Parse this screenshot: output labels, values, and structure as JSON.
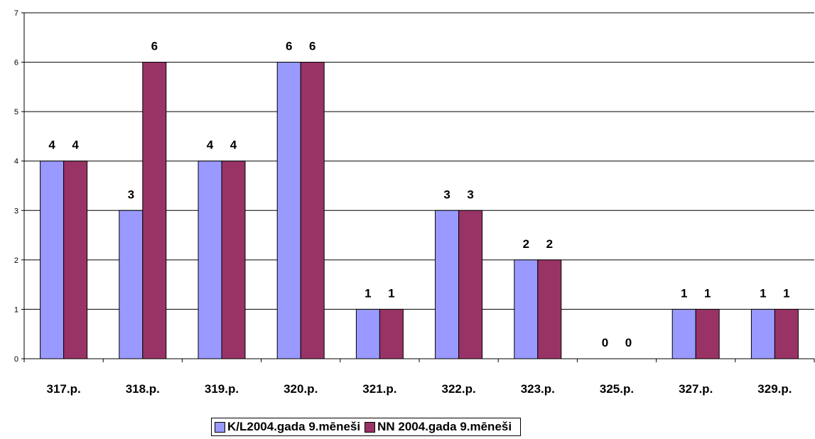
{
  "chart_data": {
    "type": "bar",
    "categories": [
      "317.p.",
      "318.p.",
      "319.p.",
      "320.p.",
      "321.p.",
      "322.p.",
      "323.p.",
      "325.p.",
      "327.p.",
      "329.p."
    ],
    "series": [
      {
        "name": "K/L2004.gada 9.mēneši",
        "color": "#9999ff",
        "values": [
          4,
          3,
          4,
          6,
          1,
          3,
          2,
          0,
          1,
          1
        ]
      },
      {
        "name": "NN 2004.gada 9.mēneši",
        "color": "#993366",
        "values": [
          4,
          6,
          4,
          6,
          1,
          3,
          2,
          0,
          1,
          1
        ]
      }
    ],
    "yticks": [
      0,
      1,
      2,
      3,
      4,
      5,
      6,
      7
    ],
    "ylim": [
      0,
      7
    ],
    "grid": true,
    "data_labels": true,
    "legend_position": "bottom",
    "title": "",
    "xlabel": "",
    "ylabel": ""
  }
}
